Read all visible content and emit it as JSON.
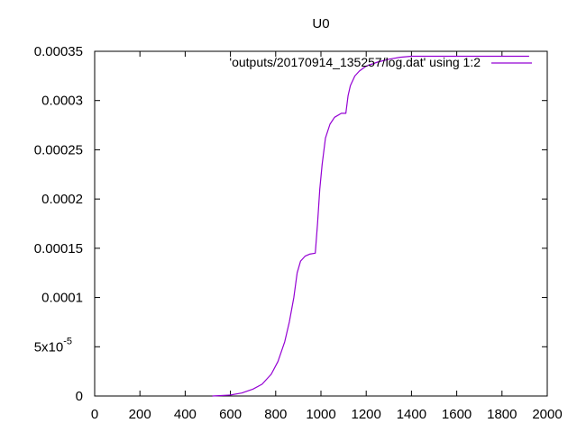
{
  "chart_data": {
    "type": "line",
    "title": "U0",
    "xlabel": "",
    "ylabel": "",
    "xlim": [
      0,
      2000
    ],
    "ylim": [
      0,
      0.00035
    ],
    "x_ticks": [
      0,
      200,
      400,
      600,
      800,
      1000,
      1200,
      1400,
      1600,
      1800,
      2000
    ],
    "x_tick_labels": [
      "0",
      "200",
      "400",
      "600",
      "800",
      "1000",
      "1200",
      "1400",
      "1600",
      "1800",
      "2000"
    ],
    "y_ticks": [
      0,
      5e-05,
      0.0001,
      0.00015,
      0.0002,
      0.00025,
      0.0003,
      0.00035
    ],
    "y_tick_labels": [
      "0",
      "5x10",
      "0.0001",
      "0.00015",
      "0.0002",
      "0.00025",
      "0.0003",
      "0.00035"
    ],
    "y_tick_exponent": "-5",
    "grid": false,
    "legend_position": "top-right",
    "series": [
      {
        "name": "'outputs/20170914_135257/log.dat' using 1:2",
        "color": "#9400d3",
        "points": [
          [
            520,
            0
          ],
          [
            560,
            5e-07
          ],
          [
            600,
            1e-06
          ],
          [
            650,
            3e-06
          ],
          [
            700,
            7e-06
          ],
          [
            740,
            1.2e-05
          ],
          [
            780,
            2.2e-05
          ],
          [
            810,
            3.5e-05
          ],
          [
            840,
            5.5e-05
          ],
          [
            860,
            7.5e-05
          ],
          [
            880,
            0.0001
          ],
          [
            895,
            0.000125
          ],
          [
            910,
            0.000137
          ],
          [
            930,
            0.000142
          ],
          [
            950,
            0.000144
          ],
          [
            975,
            0.000145
          ],
          [
            985,
            0.000175
          ],
          [
            995,
            0.00021
          ],
          [
            1005,
            0.000235
          ],
          [
            1020,
            0.000262
          ],
          [
            1040,
            0.000276
          ],
          [
            1060,
            0.000283
          ],
          [
            1090,
            0.000287
          ],
          [
            1110,
            0.000287
          ],
          [
            1120,
            0.000305
          ],
          [
            1130,
            0.000315
          ],
          [
            1150,
            0.000325
          ],
          [
            1170,
            0.00033
          ],
          [
            1200,
            0.000335
          ],
          [
            1250,
            0.000339
          ],
          [
            1300,
            0.000342
          ],
          [
            1350,
            0.000344
          ],
          [
            1400,
            0.000345
          ],
          [
            1500,
            0.000345
          ],
          [
            1700,
            0.000345
          ],
          [
            1920,
            0.000345
          ]
        ]
      }
    ]
  }
}
